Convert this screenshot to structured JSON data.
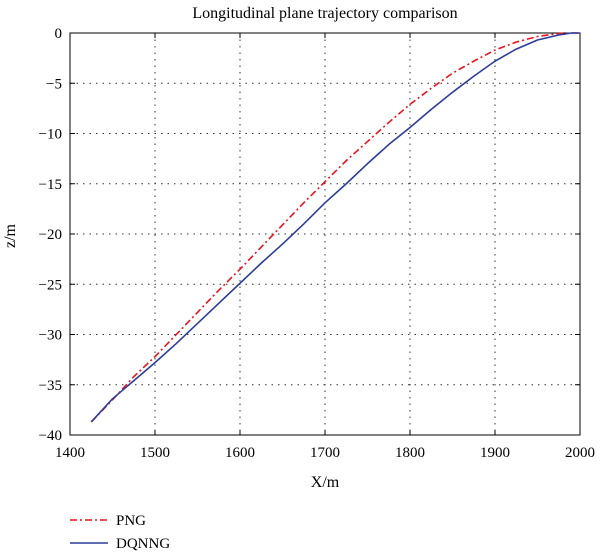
{
  "chart_data": {
    "type": "line",
    "title": "Longitudinal plane trajectory comparison",
    "xlabel": "X/m",
    "ylabel": "z/m",
    "xlim": [
      1400,
      2000
    ],
    "ylim": [
      -40,
      0
    ],
    "xticks": [
      1400,
      1500,
      1600,
      1700,
      1800,
      1900,
      2000
    ],
    "yticks": [
      0,
      -5,
      -10,
      -15,
      -20,
      -25,
      -30,
      -35,
      -40
    ],
    "xtick_labels": [
      "1400",
      "1500",
      "1600",
      "1700",
      "1800",
      "1900",
      "2000"
    ],
    "ytick_labels": [
      "0",
      "−5",
      "−10",
      "−15",
      "−20",
      "−25",
      "−30",
      "−35",
      "−40"
    ],
    "grid": true,
    "legend_position": "below-left",
    "series": [
      {
        "name": "PNG",
        "color": "#e8141e",
        "line_style": "dash-dot",
        "x": [
          1425,
          1450,
          1475,
          1500,
          1525,
          1550,
          1575,
          1600,
          1625,
          1650,
          1675,
          1700,
          1725,
          1750,
          1775,
          1800,
          1825,
          1850,
          1875,
          1900,
          1925,
          1950,
          1975,
          1990,
          2000
        ],
        "y": [
          -38.7,
          -36.5,
          -34.2,
          -32.2,
          -30.0,
          -27.8,
          -25.6,
          -23.5,
          -21.3,
          -19.1,
          -16.9,
          -14.8,
          -12.7,
          -10.8,
          -8.9,
          -7.1,
          -5.5,
          -4.0,
          -2.8,
          -1.7,
          -0.9,
          -0.35,
          -0.05,
          0.0,
          0.0
        ]
      },
      {
        "name": "DQNNG",
        "color": "#2a3d9a",
        "line_style": "solid",
        "x": [
          1425,
          1450,
          1475,
          1500,
          1525,
          1550,
          1575,
          1600,
          1625,
          1650,
          1675,
          1700,
          1725,
          1750,
          1775,
          1800,
          1825,
          1850,
          1875,
          1900,
          1925,
          1950,
          1975,
          1990,
          2000
        ],
        "y": [
          -38.7,
          -36.4,
          -34.6,
          -32.8,
          -30.9,
          -28.9,
          -26.9,
          -24.9,
          -22.9,
          -21.0,
          -19.0,
          -16.9,
          -15.0,
          -13.0,
          -11.1,
          -9.4,
          -7.6,
          -5.9,
          -4.3,
          -2.8,
          -1.6,
          -0.7,
          -0.2,
          0.0,
          0.0
        ]
      }
    ]
  }
}
